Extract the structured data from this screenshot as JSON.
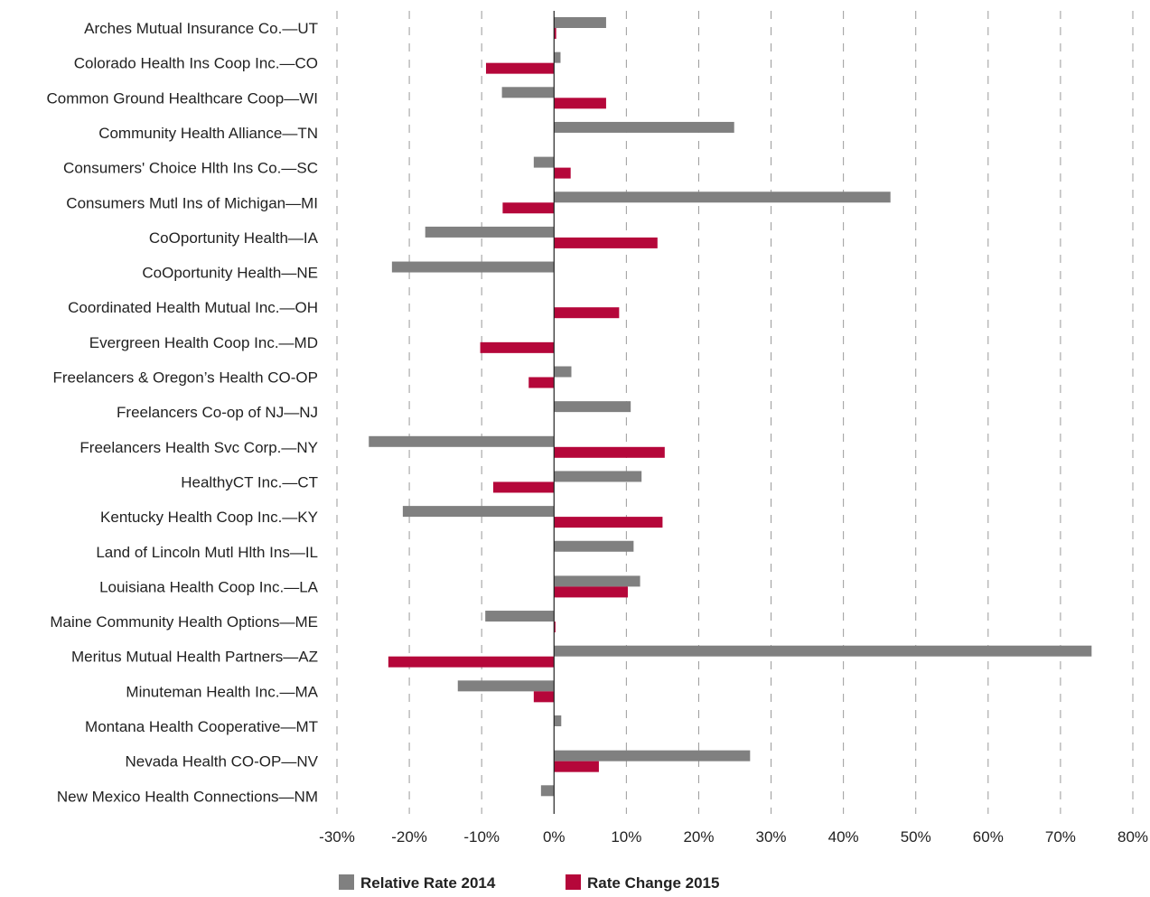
{
  "chart_data": {
    "type": "bar",
    "orientation": "horizontal",
    "categories": [
      "Arches Mutual Insurance Co.—UT",
      "Colorado Health Ins Coop Inc.—CO",
      "Common Ground Healthcare Coop—WI",
      "Community Health Alliance—TN",
      "Consumers' Choice Hlth Ins Co.—SC",
      "Consumers Mutl Ins of Michigan—MI",
      "CoOportunity Health—IA",
      "CoOportunity Health—NE",
      "Coordinated Health Mutual Inc.—OH",
      "Evergreen Health Coop Inc.—MD",
      "Freelancers & Oregon’s Health CO-OP",
      "Freelancers Co-op of NJ—NJ",
      "Freelancers Health Svc Corp.—NY",
      "HealthyCT Inc.—CT",
      "Kentucky Health Coop Inc.—KY",
      "Land of Lincoln Mutl Hlth Ins—IL",
      "Louisiana Health Coop Inc.—LA",
      "Maine Community Health Options—ME",
      "Meritus Mutual Health Partners—AZ",
      "Minuteman Health Inc.—MA",
      "Montana Health Cooperative—MT",
      "Nevada Health CO-OP—NV",
      "New Mexico Health Connections—NM"
    ],
    "series": [
      {
        "name": "Relative Rate 2014",
        "color": "#808080",
        "values": [
          7.2,
          0.9,
          -7.2,
          24.9,
          -2.8,
          46.5,
          -17.8,
          -22.4,
          null,
          null,
          2.4,
          10.6,
          -25.6,
          12.1,
          -20.9,
          11.0,
          11.9,
          -9.5,
          74.3,
          -13.3,
          1.0,
          27.1,
          -1.8
        ]
      },
      {
        "name": "Rate Change 2015",
        "color": "#B5073A",
        "values": [
          0.3,
          -9.4,
          7.2,
          null,
          2.3,
          -7.1,
          14.3,
          null,
          9.0,
          -10.2,
          -3.5,
          null,
          15.3,
          -8.4,
          15.0,
          null,
          10.2,
          0.2,
          -22.9,
          -2.8,
          null,
          6.2,
          null
        ]
      }
    ],
    "xlim": [
      -30,
      80
    ],
    "xticks": [
      "-30%",
      "-20%",
      "-10%",
      "0%",
      "10%",
      "20%",
      "30%",
      "40%",
      "50%",
      "60%",
      "70%",
      "80%"
    ],
    "xlabel": "",
    "ylabel": "",
    "title": "",
    "grid": "vertical dashed",
    "legend": {
      "position": "bottom",
      "entries": [
        "Relative Rate 2014",
        "Rate Change 2015"
      ]
    }
  }
}
